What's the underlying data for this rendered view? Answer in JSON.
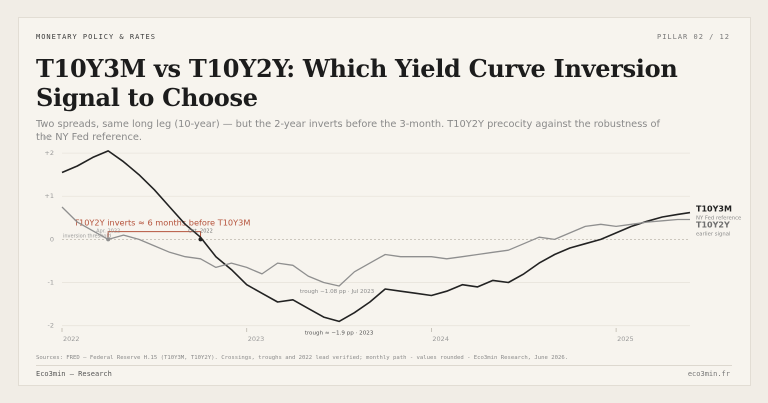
{
  "header": {
    "kicker": "MONETARY POLICY & RATES",
    "pillar": "PILLAR 02 / 12",
    "title": "T10Y3M vs T10Y2Y: Which Yield Curve Inversion Signal to Choose",
    "subtitle": "Two spreads, same long leg (10-year) — but the 2-year inverts before the 3-month. T10Y2Y precocity against the robustness of the NY Fed reference."
  },
  "footer": {
    "sources": "Sources: FRED — Federal Reserve H.15 (T10Y3M, T10Y2Y). Crossings, troughs and 2022 lead verified; monthly path - values rounded - Eco3min Research, June 2026.",
    "brand": "Eco3min — Research",
    "domain": "eco3min.fr"
  },
  "chart_data": {
    "type": "line",
    "y_unit": "pp",
    "ylim": [
      -2.1,
      2.35
    ],
    "y_ticks": [
      {
        "value": 2,
        "label": "+2"
      },
      {
        "value": 1,
        "label": "+1"
      },
      {
        "value": 0,
        "label": "0"
      },
      {
        "value": -1,
        "label": "-1"
      },
      {
        "value": -2,
        "label": "-2"
      }
    ],
    "xlim": [
      2022.0,
      2025.4
    ],
    "x_ticks": [
      {
        "value": 2022,
        "label": "2022"
      },
      {
        "value": 2023,
        "label": "2023"
      },
      {
        "value": 2024,
        "label": "2024"
      },
      {
        "value": 2025,
        "label": "2025"
      }
    ],
    "grid": "horizontal",
    "colors": {
      "t10y3m": "#222222",
      "t10y2y": "#8f8f8f",
      "annotation": "#b5533c",
      "grid": "#e8e4dc",
      "zero": "#bdb8ae"
    },
    "series": [
      {
        "name": "T10Y3M",
        "note": "NY Fed reference",
        "color": "#222222",
        "x": [
          2022.0,
          2022.083,
          2022.167,
          2022.25,
          2022.333,
          2022.417,
          2022.5,
          2022.583,
          2022.667,
          2022.75,
          2022.833,
          2022.917,
          2023.0,
          2023.083,
          2023.167,
          2023.25,
          2023.333,
          2023.417,
          2023.5,
          2023.583,
          2023.667,
          2023.75,
          2023.833,
          2023.917,
          2024.0,
          2024.083,
          2024.167,
          2024.25,
          2024.333,
          2024.417,
          2024.5,
          2024.583,
          2024.667,
          2024.75,
          2024.833,
          2024.917,
          2025.0,
          2025.083,
          2025.167,
          2025.25,
          2025.333,
          2025.4
        ],
        "values": [
          1.55,
          1.7,
          1.9,
          2.05,
          1.8,
          1.5,
          1.15,
          0.75,
          0.35,
          0.05,
          -0.4,
          -0.7,
          -1.05,
          -1.25,
          -1.45,
          -1.4,
          -1.6,
          -1.8,
          -1.9,
          -1.7,
          -1.45,
          -1.15,
          -1.2,
          -1.25,
          -1.3,
          -1.2,
          -1.05,
          -1.1,
          -0.95,
          -1.0,
          -0.8,
          -0.55,
          -0.35,
          -0.2,
          -0.1,
          0.0,
          0.15,
          0.3,
          0.42,
          0.52,
          0.58,
          0.62
        ]
      },
      {
        "name": "T10Y2Y",
        "note": "earlier signal",
        "color": "#8f8f8f",
        "x": [
          2022.0,
          2022.083,
          2022.167,
          2022.25,
          2022.333,
          2022.417,
          2022.5,
          2022.583,
          2022.667,
          2022.75,
          2022.833,
          2022.917,
          2023.0,
          2023.083,
          2023.167,
          2023.25,
          2023.333,
          2023.417,
          2023.5,
          2023.583,
          2023.667,
          2023.75,
          2023.833,
          2023.917,
          2024.0,
          2024.083,
          2024.167,
          2024.25,
          2024.333,
          2024.417,
          2024.5,
          2024.583,
          2024.667,
          2024.75,
          2024.833,
          2024.917,
          2025.0,
          2025.083,
          2025.167,
          2025.25,
          2025.333,
          2025.4
        ],
        "values": [
          0.75,
          0.4,
          0.2,
          0.0,
          0.1,
          0.0,
          -0.15,
          -0.3,
          -0.4,
          -0.45,
          -0.65,
          -0.55,
          -0.65,
          -0.8,
          -0.55,
          -0.6,
          -0.85,
          -1.0,
          -1.08,
          -0.75,
          -0.55,
          -0.35,
          -0.4,
          -0.4,
          -0.4,
          -0.45,
          -0.4,
          -0.35,
          -0.3,
          -0.25,
          -0.1,
          0.05,
          0.0,
          0.15,
          0.3,
          0.35,
          0.3,
          0.35,
          0.4,
          0.43,
          0.46,
          0.46
        ]
      }
    ],
    "annotations": {
      "lead_label": "T10Y2Y inverts ≈ 6 months before T10Y3M",
      "t10y2y_inversion": {
        "x": 2022.25,
        "y": 0,
        "date_label": "Apr. 2022",
        "caption": "inversion threshold"
      },
      "t10y3m_inversion": {
        "x": 2022.75,
        "y": 0,
        "date_label": "Oct. 2022"
      },
      "t10y2y_trough": {
        "x": 2023.5,
        "y": -1.08,
        "label": "trough −1.08 pp · Jul 2023"
      },
      "t10y3m_trough": {
        "x": 2023.5,
        "y": -1.9,
        "label": "trough ≈ −1.9 pp · 2023"
      }
    }
  }
}
